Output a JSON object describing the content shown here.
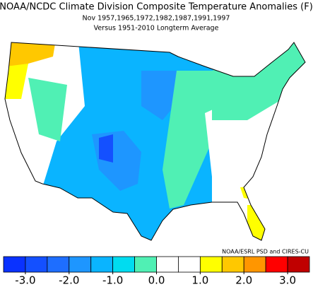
{
  "header": {
    "title": "NOAA/NCDC Climate Division Composite Temperature Anomalies (F)",
    "subtitle": "Nov   1957,1965,1972,1982,1987,1991,1997",
    "baseline": "Versus 1951-2010 Longterm Average"
  },
  "credit": "NOAA/ESRL PSD and CIRES-CU",
  "colorbar": {
    "xlim": [
      -3.5,
      3.5
    ],
    "ticks": [
      {
        "value": -3,
        "label": "-3.0"
      },
      {
        "value": -2,
        "label": "-2.0"
      },
      {
        "value": -1,
        "label": "-1.0"
      },
      {
        "value": 0,
        "label": "0.0"
      },
      {
        "value": 1,
        "label": "1.0"
      },
      {
        "value": 2,
        "label": "2.0"
      },
      {
        "value": 3,
        "label": "3.0"
      }
    ],
    "colors": [
      "#0a32ff",
      "#1450ff",
      "#1e6eff",
      "#1e96ff",
      "#0ab4ff",
      "#00dcf0",
      "#50f0b4",
      "#ffffff",
      "#ffffff",
      "#ffff00",
      "#ffc800",
      "#ff9600",
      "#ff0000",
      "#c00000"
    ]
  }
}
